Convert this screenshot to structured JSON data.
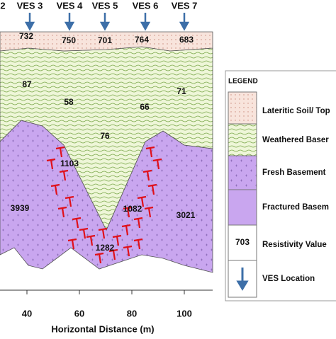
{
  "ves_labels": [
    "2",
    "VES 3",
    "VES 4",
    "VES 5",
    "VES 6",
    "VES 7"
  ],
  "lateritic_values": [
    "732",
    "750",
    "701",
    "764",
    "683"
  ],
  "weathered_values": [
    "87",
    "58",
    "66",
    "71",
    "76"
  ],
  "basement_values": [
    "3939",
    "1103",
    "1082",
    "3021",
    "1282"
  ],
  "x_axis": {
    "ticks": [
      40,
      60,
      80,
      100
    ],
    "title": "Horizontal Distance (m)"
  },
  "legend": {
    "title": "LEGEND",
    "sample_value": "703",
    "items": [
      "Lateritic Soil/ Top",
      "Weathered Baser",
      "Fresh Basement",
      "Fractured Basem",
      "Resistivity Value",
      "VES Location"
    ]
  }
}
